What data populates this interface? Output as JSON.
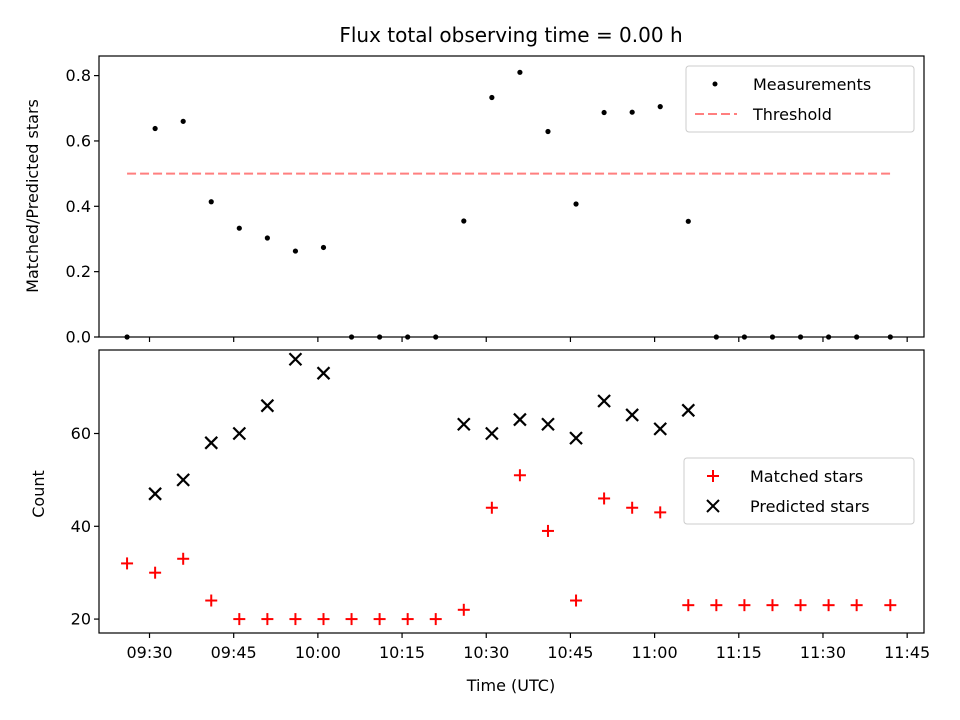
{
  "chart_data": {
    "type": "scatter",
    "title": "Flux total observing time = 0.00 h",
    "xlabel": "Time (UTC)",
    "x_ticks": [
      "09:30",
      "09:45",
      "10:00",
      "10:15",
      "10:30",
      "10:45",
      "11:00",
      "11:15",
      "11:30",
      "11:45"
    ],
    "xlim": [
      "09:21",
      "11:48"
    ],
    "panels": [
      {
        "ylabel": "Matched/Predicted stars",
        "ylim": [
          0,
          0.86
        ],
        "y_ticks": [
          "0.0",
          "0.2",
          "0.4",
          "0.6",
          "0.8"
        ],
        "legend": "top-right",
        "series": [
          {
            "name": "Measurements",
            "marker": "dot",
            "color": "#000000",
            "points": [
              [
                "09:26",
                0.0
              ],
              [
                "09:31",
                0.638
              ],
              [
                "09:36",
                0.66
              ],
              [
                "09:41",
                0.414
              ],
              [
                "09:46",
                0.333
              ],
              [
                "09:51",
                0.303
              ],
              [
                "09:56",
                0.263
              ],
              [
                "10:01",
                0.274
              ],
              [
                "10:06",
                0.0
              ],
              [
                "10:11",
                0.0
              ],
              [
                "10:16",
                0.0
              ],
              [
                "10:21",
                0.0
              ],
              [
                "10:26",
                0.355
              ],
              [
                "10:31",
                0.733
              ],
              [
                "10:36",
                0.81
              ],
              [
                "10:41",
                0.629
              ],
              [
                "10:46",
                0.407
              ],
              [
                "10:51",
                0.687
              ],
              [
                "10:56",
                0.688
              ],
              [
                "11:01",
                0.705
              ],
              [
                "11:06",
                0.354
              ],
              [
                "11:11",
                0.0
              ],
              [
                "11:16",
                0.0
              ],
              [
                "11:21",
                0.0
              ],
              [
                "11:26",
                0.0
              ],
              [
                "11:31",
                0.0
              ],
              [
                "11:36",
                0.0
              ],
              [
                "11:42",
                0.0
              ]
            ]
          },
          {
            "name": "Threshold",
            "marker": "dashed-line",
            "color": "#ff7f7f",
            "points": [
              [
                "09:26",
                0.5
              ],
              [
                "11:42",
                0.5
              ]
            ]
          }
        ]
      },
      {
        "ylabel": "Count",
        "ylim": [
          17,
          78
        ],
        "y_ticks": [
          "20",
          "40",
          "60"
        ],
        "legend": "center-right",
        "series": [
          {
            "name": "Matched stars",
            "marker": "plus",
            "color": "#ff0000",
            "points": [
              [
                "09:26",
                32
              ],
              [
                "09:31",
                30
              ],
              [
                "09:36",
                33
              ],
              [
                "09:41",
                24
              ],
              [
                "09:46",
                20
              ],
              [
                "09:51",
                20
              ],
              [
                "09:56",
                20
              ],
              [
                "10:01",
                20
              ],
              [
                "10:06",
                20
              ],
              [
                "10:11",
                20
              ],
              [
                "10:16",
                20
              ],
              [
                "10:21",
                20
              ],
              [
                "10:26",
                22
              ],
              [
                "10:31",
                44
              ],
              [
                "10:36",
                51
              ],
              [
                "10:41",
                39
              ],
              [
                "10:46",
                24
              ],
              [
                "10:51",
                46
              ],
              [
                "10:56",
                44
              ],
              [
                "11:01",
                43
              ],
              [
                "11:06",
                23
              ],
              [
                "11:11",
                23
              ],
              [
                "11:16",
                23
              ],
              [
                "11:21",
                23
              ],
              [
                "11:26",
                23
              ],
              [
                "11:31",
                23
              ],
              [
                "11:36",
                23
              ],
              [
                "11:42",
                23
              ]
            ]
          },
          {
            "name": "Predicted stars",
            "marker": "x",
            "color": "#000000",
            "points": [
              [
                "09:31",
                47
              ],
              [
                "09:36",
                50
              ],
              [
                "09:41",
                58
              ],
              [
                "09:46",
                60
              ],
              [
                "09:51",
                66
              ],
              [
                "09:56",
                76
              ],
              [
                "10:01",
                73
              ],
              [
                "10:26",
                62
              ],
              [
                "10:31",
                60
              ],
              [
                "10:36",
                63
              ],
              [
                "10:41",
                62
              ],
              [
                "10:46",
                59
              ],
              [
                "10:51",
                67
              ],
              [
                "10:56",
                64
              ],
              [
                "11:01",
                61
              ],
              [
                "11:06",
                65
              ]
            ]
          }
        ]
      }
    ]
  }
}
